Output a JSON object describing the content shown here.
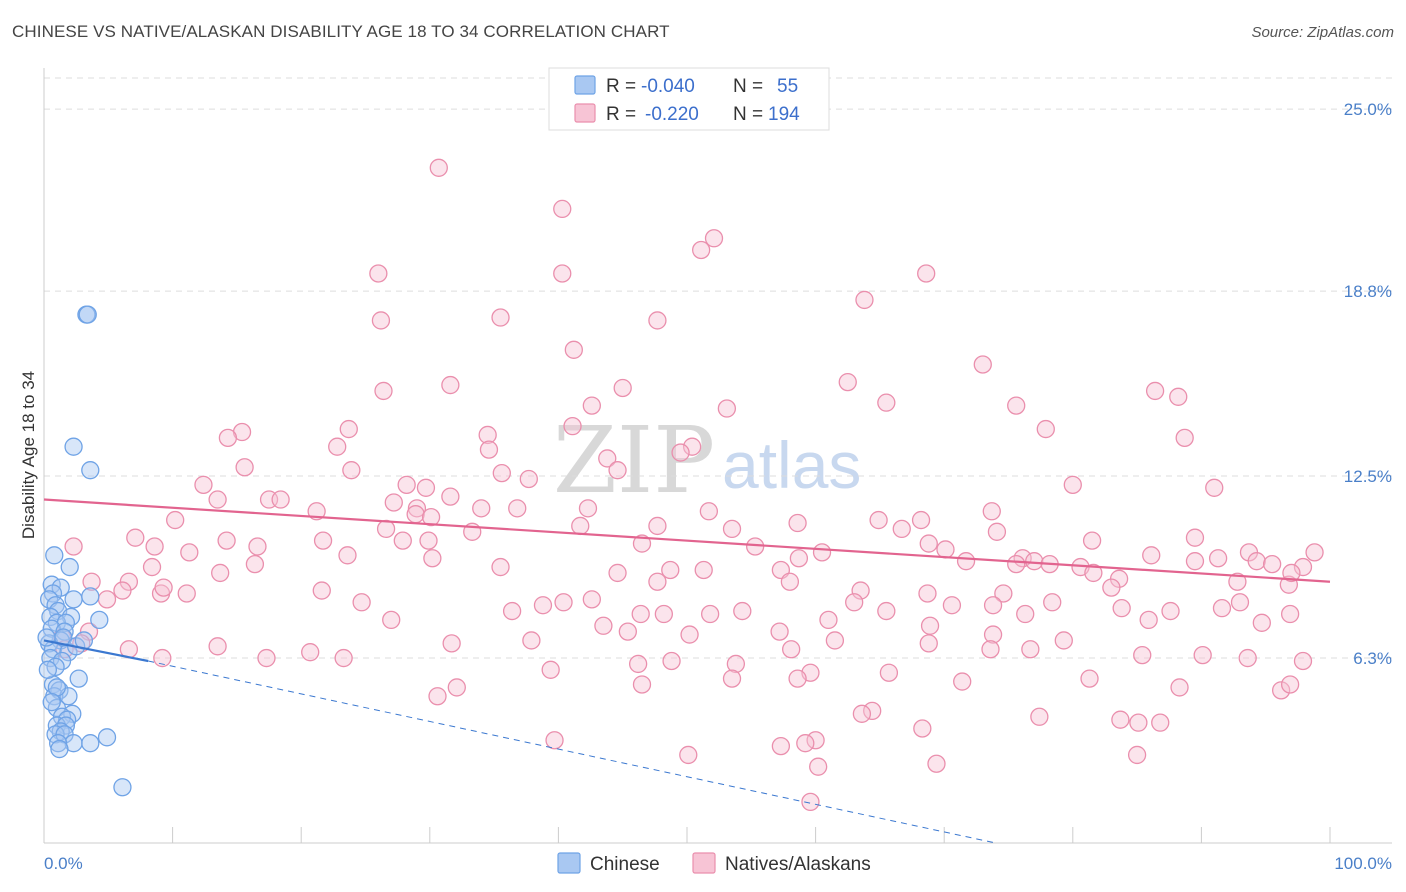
{
  "title": "CHINESE VS NATIVE/ALASKAN DISABILITY AGE 18 TO 34 CORRELATION CHART",
  "source": "Source: ZipAtlas.com",
  "colors": {
    "chinese": "#6fa3e6",
    "chinese_fill": "#a9c8f2",
    "natives": "#ea8fad",
    "natives_fill": "#f7c4d5",
    "chinese_line": "#3b78d0",
    "natives_line": "#e2648f",
    "tick_text": "#4a7fc8",
    "grid": "#dddddd"
  },
  "legend": {
    "rows": [
      {
        "r_label": "R =",
        "r_value": "-0.040",
        "n_label": "N =",
        "n_value": "55"
      },
      {
        "r_label": "R =",
        "r_value": "-0.220",
        "n_label": "N =",
        "n_value": "194"
      }
    ]
  },
  "bottom_legend": [
    "Chinese",
    "Natives/Alaskans"
  ],
  "watermark": {
    "zip": "ZIP",
    "atlas": "atlas"
  },
  "chart_data": {
    "type": "scatter",
    "title": "CHINESE VS NATIVE/ALASKAN DISABILITY AGE 18 TO 34 CORRELATION CHART",
    "xlabel": "",
    "ylabel": "Disability Age 18 to 34",
    "xlim": [
      0,
      100
    ],
    "ylim": [
      0,
      26.4
    ],
    "x_tick_labels": [
      "0.0%",
      "100.0%"
    ],
    "y_ticks": [
      6.3,
      12.5,
      18.8,
      25.0
    ],
    "y_tick_labels": [
      "6.3%",
      "12.5%",
      "18.8%",
      "25.0%"
    ],
    "grid": true,
    "legend_position": "top-center",
    "series": [
      {
        "name": "Chinese",
        "R": -0.04,
        "N": 55,
        "trend": {
          "x": [
            0,
            8.1
          ],
          "y": [
            6.9,
            6.2
          ],
          "dashed_extension": {
            "x": [
              8.1,
              74
            ],
            "y": [
              6.2,
              0
            ]
          }
        },
        "points": [
          [
            3.3,
            18.0
          ],
          [
            3.4,
            18.0
          ],
          [
            2.3,
            13.5
          ],
          [
            3.6,
            12.7
          ],
          [
            0.8,
            9.8
          ],
          [
            2.0,
            9.4
          ],
          [
            0.6,
            8.8
          ],
          [
            1.3,
            8.7
          ],
          [
            0.7,
            8.5
          ],
          [
            0.4,
            8.3
          ],
          [
            2.3,
            8.3
          ],
          [
            3.6,
            8.4
          ],
          [
            0.9,
            8.1
          ],
          [
            1.1,
            7.9
          ],
          [
            0.5,
            7.7
          ],
          [
            2.1,
            7.7
          ],
          [
            4.3,
            7.6
          ],
          [
            1.0,
            7.5
          ],
          [
            1.7,
            7.5
          ],
          [
            0.6,
            7.3
          ],
          [
            1.6,
            7.2
          ],
          [
            1.3,
            6.9
          ],
          [
            0.4,
            6.8
          ],
          [
            0.7,
            6.6
          ],
          [
            1.9,
            6.5
          ],
          [
            0.5,
            6.3
          ],
          [
            1.4,
            6.2
          ],
          [
            0.9,
            6.0
          ],
          [
            2.7,
            5.6
          ],
          [
            0.7,
            5.4
          ],
          [
            1.2,
            5.2
          ],
          [
            0.8,
            5.0
          ],
          [
            1.9,
            5.0
          ],
          [
            1.0,
            4.6
          ],
          [
            2.2,
            4.4
          ],
          [
            1.4,
            4.3
          ],
          [
            1.8,
            4.2
          ],
          [
            1.0,
            4.0
          ],
          [
            1.7,
            4.0
          ],
          [
            1.3,
            3.8
          ],
          [
            0.9,
            3.7
          ],
          [
            1.6,
            3.7
          ],
          [
            2.3,
            3.4
          ],
          [
            1.1,
            3.4
          ],
          [
            3.6,
            3.4
          ],
          [
            4.9,
            3.6
          ],
          [
            6.1,
            1.9
          ],
          [
            1.2,
            3.2
          ],
          [
            1.5,
            7.0
          ],
          [
            0.3,
            5.9
          ],
          [
            2.5,
            6.7
          ],
          [
            0.2,
            7.0
          ],
          [
            1.0,
            5.3
          ],
          [
            3.1,
            6.9
          ],
          [
            0.6,
            4.8
          ]
        ]
      },
      {
        "name": "Natives/Alaskans",
        "R": -0.22,
        "N": 194,
        "trend": {
          "x": [
            0,
            100
          ],
          "y": [
            11.7,
            8.9
          ]
        },
        "points": [
          [
            30.7,
            23.0
          ],
          [
            40.3,
            21.6
          ],
          [
            52.1,
            20.6
          ],
          [
            51.1,
            20.2
          ],
          [
            26.0,
            19.4
          ],
          [
            40.3,
            19.4
          ],
          [
            68.6,
            19.4
          ],
          [
            63.8,
            18.5
          ],
          [
            26.2,
            17.8
          ],
          [
            35.5,
            17.9
          ],
          [
            47.7,
            17.8
          ],
          [
            41.2,
            16.8
          ],
          [
            73.0,
            16.3
          ],
          [
            62.5,
            15.7
          ],
          [
            31.6,
            15.6
          ],
          [
            45.0,
            15.5
          ],
          [
            26.4,
            15.4
          ],
          [
            86.4,
            15.4
          ],
          [
            88.2,
            15.2
          ],
          [
            65.5,
            15.0
          ],
          [
            42.6,
            14.9
          ],
          [
            53.1,
            14.8
          ],
          [
            75.6,
            14.9
          ],
          [
            41.1,
            14.2
          ],
          [
            23.7,
            14.1
          ],
          [
            77.9,
            14.1
          ],
          [
            15.4,
            14.0
          ],
          [
            34.5,
            13.9
          ],
          [
            14.3,
            13.8
          ],
          [
            88.7,
            13.8
          ],
          [
            22.8,
            13.5
          ],
          [
            50.4,
            13.5
          ],
          [
            34.6,
            13.4
          ],
          [
            49.5,
            13.3
          ],
          [
            43.8,
            13.1
          ],
          [
            15.6,
            12.8
          ],
          [
            23.9,
            12.7
          ],
          [
            44.6,
            12.7
          ],
          [
            35.6,
            12.6
          ],
          [
            37.7,
            12.4
          ],
          [
            12.4,
            12.2
          ],
          [
            29.7,
            12.1
          ],
          [
            28.2,
            12.2
          ],
          [
            80.0,
            12.2
          ],
          [
            91.0,
            12.1
          ],
          [
            31.6,
            11.8
          ],
          [
            13.5,
            11.7
          ],
          [
            17.5,
            11.7
          ],
          [
            18.4,
            11.7
          ],
          [
            27.2,
            11.6
          ],
          [
            29.0,
            11.4
          ],
          [
            42.3,
            11.4
          ],
          [
            34.0,
            11.4
          ],
          [
            36.8,
            11.4
          ],
          [
            73.7,
            11.3
          ],
          [
            51.7,
            11.3
          ],
          [
            21.2,
            11.3
          ],
          [
            10.2,
            11.0
          ],
          [
            64.9,
            11.0
          ],
          [
            28.9,
            11.2
          ],
          [
            30.1,
            11.1
          ],
          [
            47.7,
            10.8
          ],
          [
            58.6,
            10.9
          ],
          [
            68.2,
            11.0
          ],
          [
            66.7,
            10.7
          ],
          [
            41.7,
            10.8
          ],
          [
            53.5,
            10.7
          ],
          [
            74.1,
            10.6
          ],
          [
            68.8,
            10.2
          ],
          [
            89.5,
            10.4
          ],
          [
            81.5,
            10.3
          ],
          [
            93.7,
            9.9
          ],
          [
            21.7,
            10.3
          ],
          [
            26.6,
            10.7
          ],
          [
            7.1,
            10.4
          ],
          [
            14.2,
            10.3
          ],
          [
            8.6,
            10.1
          ],
          [
            11.3,
            9.9
          ],
          [
            16.6,
            10.1
          ],
          [
            2.3,
            10.1
          ],
          [
            27.9,
            10.3
          ],
          [
            29.9,
            10.3
          ],
          [
            23.6,
            9.8
          ],
          [
            33.3,
            10.6
          ],
          [
            30.2,
            9.7
          ],
          [
            46.5,
            10.2
          ],
          [
            55.3,
            10.1
          ],
          [
            58.7,
            9.7
          ],
          [
            60.5,
            9.9
          ],
          [
            70.1,
            10.0
          ],
          [
            86.1,
            9.8
          ],
          [
            91.3,
            9.7
          ],
          [
            94.3,
            9.6
          ],
          [
            95.5,
            9.5
          ],
          [
            97.9,
            9.4
          ],
          [
            89.5,
            9.6
          ],
          [
            71.7,
            9.6
          ],
          [
            76.1,
            9.7
          ],
          [
            77.0,
            9.6
          ],
          [
            75.6,
            9.5
          ],
          [
            78.2,
            9.5
          ],
          [
            80.6,
            9.4
          ],
          [
            81.6,
            9.2
          ],
          [
            83.6,
            9.0
          ],
          [
            8.4,
            9.4
          ],
          [
            13.7,
            9.2
          ],
          [
            16.4,
            9.5
          ],
          [
            3.7,
            8.9
          ],
          [
            6.6,
            8.9
          ],
          [
            9.1,
            8.5
          ],
          [
            6.1,
            8.6
          ],
          [
            11.1,
            8.5
          ],
          [
            4.9,
            8.3
          ],
          [
            9.3,
            8.7
          ],
          [
            21.6,
            8.6
          ],
          [
            35.5,
            9.4
          ],
          [
            44.6,
            9.2
          ],
          [
            47.7,
            8.9
          ],
          [
            48.7,
            9.3
          ],
          [
            51.3,
            9.3
          ],
          [
            57.3,
            9.3
          ],
          [
            58.0,
            8.9
          ],
          [
            63.5,
            8.6
          ],
          [
            68.7,
            8.5
          ],
          [
            74.6,
            8.5
          ],
          [
            83.0,
            8.7
          ],
          [
            96.8,
            8.8
          ],
          [
            97.0,
            9.2
          ],
          [
            98.8,
            9.9
          ],
          [
            92.8,
            8.9
          ],
          [
            24.7,
            8.2
          ],
          [
            36.4,
            7.9
          ],
          [
            38.8,
            8.1
          ],
          [
            40.4,
            8.2
          ],
          [
            42.6,
            8.3
          ],
          [
            46.4,
            7.8
          ],
          [
            48.2,
            7.8
          ],
          [
            51.8,
            7.8
          ],
          [
            54.3,
            7.9
          ],
          [
            63.0,
            8.2
          ],
          [
            65.5,
            7.9
          ],
          [
            70.6,
            8.1
          ],
          [
            73.8,
            8.1
          ],
          [
            76.3,
            7.8
          ],
          [
            78.4,
            8.2
          ],
          [
            83.8,
            8.0
          ],
          [
            87.6,
            7.9
          ],
          [
            91.6,
            8.0
          ],
          [
            93.0,
            8.2
          ],
          [
            96.9,
            7.8
          ],
          [
            94.7,
            7.5
          ],
          [
            85.9,
            7.6
          ],
          [
            27.0,
            7.6
          ],
          [
            43.5,
            7.4
          ],
          [
            45.4,
            7.2
          ],
          [
            50.2,
            7.1
          ],
          [
            57.2,
            7.2
          ],
          [
            61.0,
            7.6
          ],
          [
            68.9,
            7.4
          ],
          [
            73.8,
            7.1
          ],
          [
            3.5,
            7.2
          ],
          [
            1.4,
            7.0
          ],
          [
            2.9,
            6.8
          ],
          [
            1.6,
            6.6
          ],
          [
            6.6,
            6.6
          ],
          [
            9.2,
            6.3
          ],
          [
            13.5,
            6.7
          ],
          [
            17.3,
            6.3
          ],
          [
            20.7,
            6.5
          ],
          [
            23.3,
            6.3
          ],
          [
            31.7,
            6.8
          ],
          [
            37.9,
            6.9
          ],
          [
            46.2,
            6.1
          ],
          [
            48.8,
            6.2
          ],
          [
            53.8,
            6.1
          ],
          [
            58.1,
            6.6
          ],
          [
            61.5,
            6.9
          ],
          [
            68.8,
            6.8
          ],
          [
            73.6,
            6.6
          ],
          [
            76.7,
            6.6
          ],
          [
            79.3,
            6.9
          ],
          [
            85.4,
            6.4
          ],
          [
            90.1,
            6.4
          ],
          [
            93.6,
            6.3
          ],
          [
            97.9,
            6.2
          ],
          [
            39.4,
            5.9
          ],
          [
            32.1,
            5.3
          ],
          [
            46.5,
            5.4
          ],
          [
            53.5,
            5.6
          ],
          [
            59.6,
            5.8
          ],
          [
            65.7,
            5.8
          ],
          [
            81.3,
            5.6
          ],
          [
            88.3,
            5.3
          ],
          [
            96.2,
            5.2
          ],
          [
            30.6,
            5.0
          ],
          [
            58.6,
            5.6
          ],
          [
            71.4,
            5.5
          ],
          [
            96.9,
            5.4
          ],
          [
            64.4,
            4.5
          ],
          [
            77.4,
            4.3
          ],
          [
            83.7,
            4.2
          ],
          [
            85.1,
            4.1
          ],
          [
            86.8,
            4.1
          ],
          [
            68.3,
            3.9
          ],
          [
            60.0,
            3.5
          ],
          [
            57.3,
            3.3
          ],
          [
            59.2,
            3.4
          ],
          [
            39.7,
            3.5
          ],
          [
            60.2,
            2.6
          ],
          [
            50.1,
            3.0
          ],
          [
            69.4,
            2.7
          ],
          [
            85.0,
            3.0
          ],
          [
            59.6,
            1.4
          ],
          [
            63.6,
            4.4
          ]
        ]
      }
    ]
  }
}
